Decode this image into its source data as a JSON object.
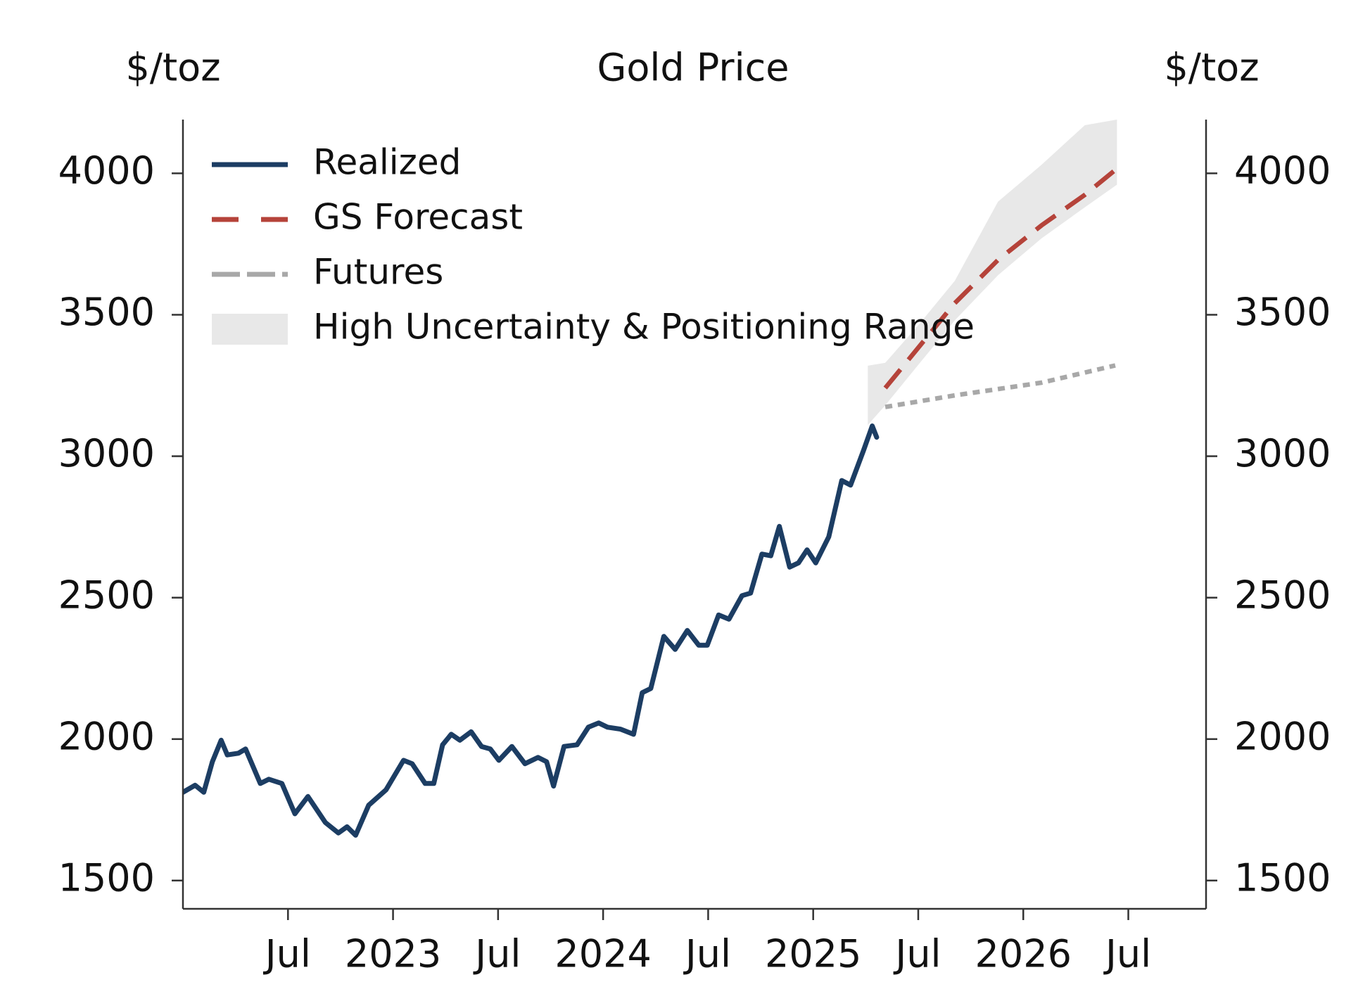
{
  "chart_data": {
    "type": "line",
    "title": "Gold Price",
    "y_label": "$/toz",
    "y2_label": "$/toz",
    "xlim": [
      2022.0,
      2026.87
    ],
    "xticks": [
      {
        "value": 2022.5,
        "label": "Jul"
      },
      {
        "value": 2023,
        "label": "2023"
      },
      {
        "value": 2023.5,
        "label": "Jul"
      },
      {
        "value": 2024,
        "label": "2024"
      },
      {
        "value": 2024.5,
        "label": "Jul"
      },
      {
        "value": 2025,
        "label": "2025"
      },
      {
        "value": 2025.5,
        "label": "Jul"
      },
      {
        "value": 2026,
        "label": "2026"
      },
      {
        "value": 2026.5,
        "label": "Jul"
      }
    ],
    "ylim": [
      1400,
      4190
    ],
    "yticks": [
      1500,
      2000,
      2500,
      3000,
      3500,
      4000
    ],
    "y2lim": [
      1400,
      4190
    ],
    "y2ticks": [
      1500,
      2000,
      2500,
      3000,
      3500,
      4000
    ],
    "grid": false,
    "legend": "upper left",
    "series": [
      {
        "name": "Realized",
        "color": "#1c3d63",
        "style": "solid",
        "x": [
          2022.0,
          2022.058,
          2022.099,
          2022.14,
          2022.182,
          2022.211,
          2022.264,
          2022.298,
          2022.368,
          2022.409,
          2022.471,
          2022.533,
          2022.595,
          2022.678,
          2022.74,
          2022.781,
          2022.822,
          2022.884,
          2022.967,
          2023.05,
          2023.091,
          2023.153,
          2023.194,
          2023.236,
          2023.277,
          2023.318,
          2023.372,
          2023.421,
          2023.463,
          2023.504,
          2023.566,
          2023.628,
          2023.69,
          2023.731,
          2023.764,
          2023.814,
          2023.876,
          2023.93,
          2023.979,
          2024.021,
          2024.083,
          2024.145,
          2024.186,
          2024.227,
          2024.289,
          2024.343,
          2024.401,
          2024.455,
          2024.496,
          2024.55,
          2024.599,
          2024.661,
          2024.702,
          2024.756,
          2024.798,
          2024.839,
          2024.888,
          2024.93,
          2024.971,
          2025.012,
          2025.074,
          2025.136,
          2025.178,
          2025.24,
          2025.281,
          2025.302
        ],
        "values": [
          1812,
          1837,
          1812,
          1920,
          1996,
          1944,
          1950,
          1965,
          1843,
          1858,
          1843,
          1736,
          1797,
          1705,
          1668,
          1690,
          1660,
          1766,
          1821,
          1925,
          1913,
          1843,
          1843,
          1980,
          2017,
          1996,
          2026,
          1974,
          1965,
          1925,
          1974,
          1913,
          1935,
          1920,
          1834,
          1974,
          1980,
          2042,
          2057,
          2042,
          2035,
          2017,
          2164,
          2179,
          2363,
          2317,
          2384,
          2332,
          2332,
          2439,
          2424,
          2507,
          2516,
          2654,
          2648,
          2752,
          2608,
          2623,
          2669,
          2623,
          2715,
          2914,
          2898,
          3021,
          3107,
          3067
        ]
      },
      {
        "name": "GS Forecast",
        "color": "#b5433a",
        "style": "dashed",
        "x": [
          2025.343,
          2025.674,
          2025.88,
          2026.087,
          2026.293,
          2026.438
        ],
        "values": [
          3241,
          3541,
          3694,
          3816,
          3924,
          4012
        ]
      },
      {
        "name": "Futures",
        "color": "#a8a8a8",
        "style": "dotted",
        "x": [
          2025.343,
          2025.674,
          2026.087,
          2026.438
        ],
        "values": [
          3174,
          3215,
          3260,
          3321
        ]
      },
      {
        "name": "High Uncertainty & Positioning Range",
        "color": "#e8e8e8",
        "style": "band",
        "x": [
          2025.26,
          2025.343,
          2025.508,
          2025.674,
          2025.88,
          2026.087,
          2026.293,
          2026.446
        ],
        "upper": [
          3320,
          3330,
          3470,
          3620,
          3900,
          4030,
          4170,
          4190
        ],
        "lower": [
          3110,
          3180,
          3330,
          3480,
          3640,
          3770,
          3880,
          3960
        ]
      }
    ]
  }
}
